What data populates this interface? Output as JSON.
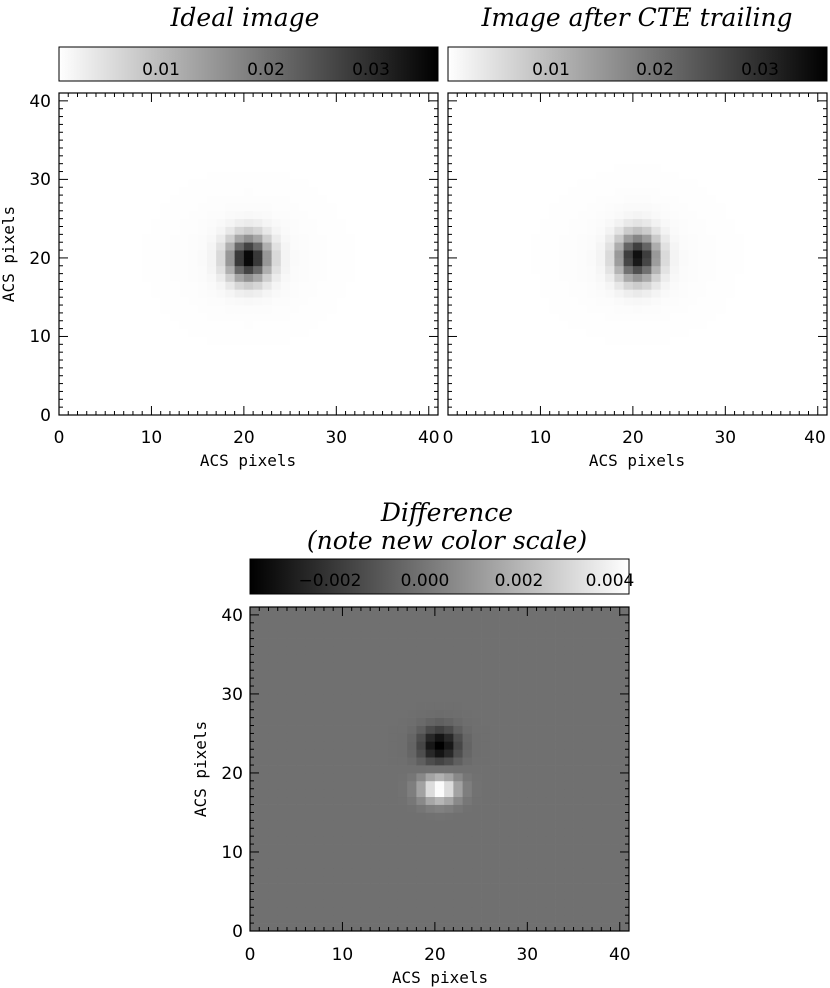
{
  "chart_data": [
    {
      "type": "heatmap",
      "title": "Ideal image",
      "xlabel": "ACS pixels",
      "ylabel": "ACS pixels",
      "xlim": [
        0,
        41
      ],
      "ylim": [
        0,
        41
      ],
      "xticks": [
        "0",
        "10",
        "20",
        "30",
        "40"
      ],
      "yticks": [
        "0",
        "10",
        "20",
        "30",
        "40"
      ],
      "colorbar": {
        "ticks": [
          "0.01",
          "0.02",
          "0.03"
        ],
        "tick_values": [
          0.01,
          0.02,
          0.03
        ],
        "range": [
          0.0,
          0.036
        ],
        "colormap": "white-to-black"
      },
      "source": {
        "center": [
          20,
          19.5
        ],
        "peak": 0.035,
        "sigma_x": 1.5,
        "sigma_y": 1.9,
        "halo_amp": 0.0009,
        "halo_sigma": 5.0,
        "trailed": false
      }
    },
    {
      "type": "heatmap",
      "title": "Image after CTE trailing",
      "xlabel": "ACS pixels",
      "ylabel": "",
      "xlim": [
        0,
        41
      ],
      "ylim": [
        0,
        41
      ],
      "xticks": [
        "0",
        "10",
        "20",
        "30",
        "40"
      ],
      "yticks": [
        "0",
        "10",
        "20",
        "30",
        "40"
      ],
      "colorbar": {
        "ticks": [
          "0.01",
          "0.02",
          "0.03"
        ],
        "tick_values": [
          0.01,
          0.02,
          0.03
        ],
        "range": [
          0.0,
          0.036
        ],
        "colormap": "white-to-black"
      },
      "source": {
        "center": [
          20,
          19.6
        ],
        "peak": 0.033,
        "sigma_x": 1.5,
        "sigma_y": 2.0,
        "halo_amp": 0.0009,
        "halo_sigma": 5.0,
        "trailed": true
      }
    },
    {
      "type": "heatmap",
      "title": "Difference",
      "subtitle": "(note new color scale)",
      "xlabel": "ACS pixels",
      "ylabel": "ACS pixels",
      "xlim": [
        0,
        41
      ],
      "ylim": [
        0,
        41
      ],
      "xticks": [
        "0",
        "10",
        "20",
        "30",
        "40"
      ],
      "yticks": [
        "0",
        "10",
        "20",
        "30",
        "40"
      ],
      "colorbar": {
        "ticks": [
          "−0.002",
          "0.000",
          "0.002",
          "0.004"
        ],
        "tick_values": [
          -0.002,
          0.0,
          0.002,
          0.004
        ],
        "range": [
          -0.0035,
          0.0045
        ],
        "colormap": "black-to-white"
      },
      "difference": {
        "negative_lobe": {
          "center": [
            20,
            23
          ],
          "amplitude": -0.0036,
          "sigma_x": 1.4,
          "sigma_y": 1.5
        },
        "positive_lobe": {
          "center": [
            20,
            17.5
          ],
          "amplitude": 0.0048,
          "sigma_x": 1.4,
          "sigma_y": 1.2
        }
      }
    }
  ]
}
